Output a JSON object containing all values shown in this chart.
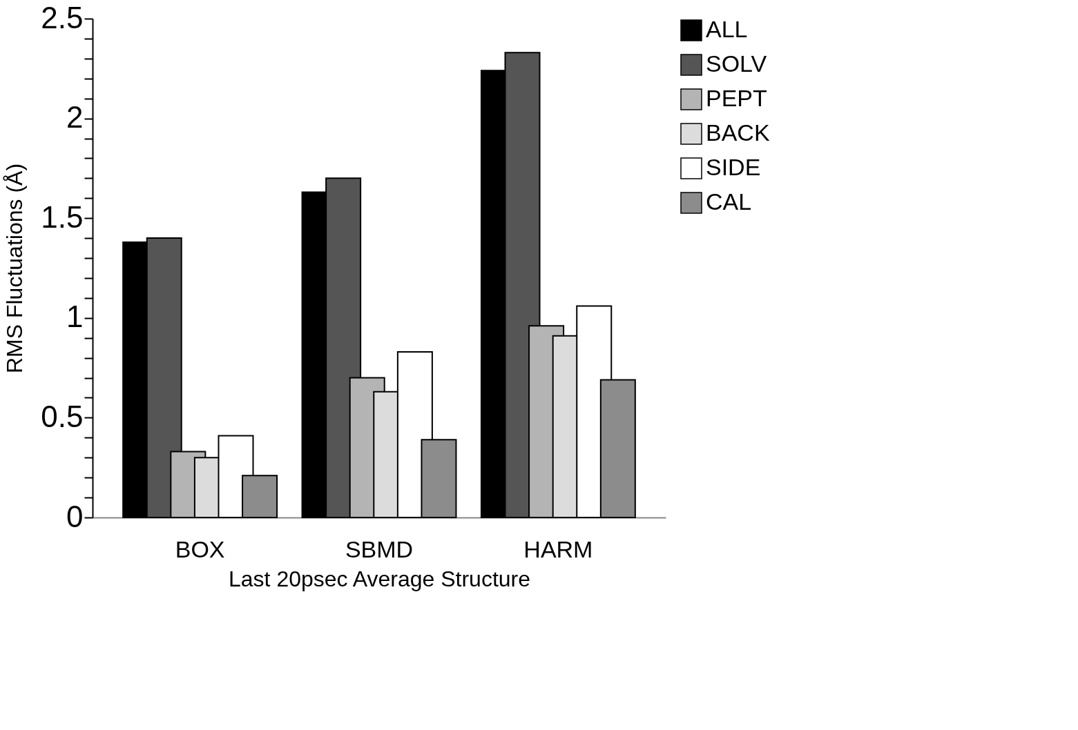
{
  "chart_data": {
    "type": "bar",
    "xlabel": "Last 20psec Average Structure",
    "ylabel": "RMS Fluctuations (Å)",
    "categories": [
      "BOX",
      "SBMD",
      "HARM"
    ],
    "series": [
      {
        "name": "ALL",
        "color": "#000000",
        "values": [
          1.38,
          1.63,
          2.24
        ]
      },
      {
        "name": "SOLV",
        "color": "#555555",
        "values": [
          1.4,
          1.7,
          2.33
        ]
      },
      {
        "name": "PEPT",
        "color": "#b4b4b4",
        "values": [
          0.33,
          0.7,
          0.96
        ]
      },
      {
        "name": "BACK",
        "color": "#dcdcdc",
        "values": [
          0.3,
          0.63,
          0.91
        ]
      },
      {
        "name": "SIDE",
        "color": "#ffffff",
        "values": [
          0.41,
          0.83,
          1.06
        ]
      },
      {
        "name": "CAL",
        "color": "#8c8c8c",
        "values": [
          0.21,
          0.39,
          0.69
        ]
      }
    ],
    "ylim": [
      0,
      2.5
    ],
    "yticks": [
      0,
      {
        "value": 0.1,
        "label": null
      },
      {
        "value": 0.2,
        "label": null
      },
      {
        "value": 0.3,
        "label": null
      },
      {
        "value": 0.4,
        "label": null
      },
      0.5,
      {
        "value": 0.6,
        "label": null
      },
      {
        "value": 0.7,
        "label": null
      },
      {
        "value": 0.8,
        "label": null
      },
      {
        "value": 0.9,
        "label": null
      },
      1,
      {
        "value": 1.1,
        "label": null
      },
      {
        "value": 1.2,
        "label": null
      },
      {
        "value": 1.3,
        "label": null
      },
      {
        "value": 1.4,
        "label": null
      },
      1.5,
      {
        "value": 1.6,
        "label": null
      },
      {
        "value": 1.7,
        "label": null
      },
      {
        "value": 1.8,
        "label": null
      },
      {
        "value": 1.9,
        "label": null
      },
      2,
      {
        "value": 2.1,
        "label": null
      },
      {
        "value": 2.2,
        "label": null
      },
      {
        "value": 2.3,
        "label": null
      },
      {
        "value": 2.4,
        "label": null
      },
      2.5
    ],
    "legend": "right",
    "grid": false
  }
}
